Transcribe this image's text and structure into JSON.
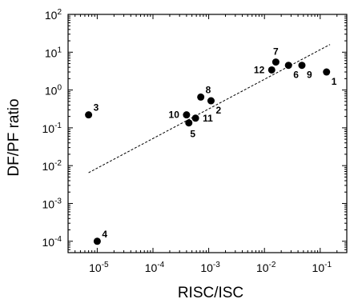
{
  "chart_data": {
    "type": "scatter",
    "xlabel": "RISC/ISC",
    "ylabel": "DF/PF ratio",
    "xscale": "log",
    "yscale": "log",
    "xlim": [
      3e-06,
      0.3
    ],
    "ylim": [
      5e-05,
      100
    ],
    "xticks": [
      {
        "base": "10",
        "exp": "-5",
        "value": 1e-05
      },
      {
        "base": "10",
        "exp": "-4",
        "value": 0.0001
      },
      {
        "base": "10",
        "exp": "-3",
        "value": 0.001
      },
      {
        "base": "10",
        "exp": "-2",
        "value": 0.01
      },
      {
        "base": "10",
        "exp": "-1",
        "value": 0.1
      }
    ],
    "yticks": [
      {
        "base": "10",
        "exp": "-4",
        "value": 0.0001
      },
      {
        "base": "10",
        "exp": "-3",
        "value": 0.001
      },
      {
        "base": "10",
        "exp": "-2",
        "value": 0.01
      },
      {
        "base": "10",
        "exp": "-1",
        "value": 0.1
      },
      {
        "base": "10",
        "exp": "0",
        "value": 1
      },
      {
        "base": "10",
        "exp": "1",
        "value": 10
      },
      {
        "base": "10",
        "exp": "2",
        "value": 100
      }
    ],
    "points": [
      {
        "label": "1",
        "x": 0.13,
        "y": 3.0,
        "label_pos": "below-right"
      },
      {
        "label": "2",
        "x": 0.0011,
        "y": 0.52,
        "label_pos": "below-right"
      },
      {
        "label": "3",
        "x": 7e-06,
        "y": 0.22,
        "label_pos": "above-right"
      },
      {
        "label": "4",
        "x": 1e-05,
        "y": 0.0001,
        "label_pos": "above-right"
      },
      {
        "label": "5",
        "x": 0.00044,
        "y": 0.135,
        "label_pos": "below"
      },
      {
        "label": "6",
        "x": 0.027,
        "y": 4.5,
        "label_pos": "below-right"
      },
      {
        "label": "7",
        "x": 0.016,
        "y": 5.5,
        "label_pos": "above"
      },
      {
        "label": "8",
        "x": 0.00072,
        "y": 0.65,
        "label_pos": "above-right"
      },
      {
        "label": "9",
        "x": 0.047,
        "y": 4.5,
        "label_pos": "below-right"
      },
      {
        "label": "10",
        "x": 0.0004,
        "y": 0.22,
        "label_pos": "left"
      },
      {
        "label": "11",
        "x": 0.00058,
        "y": 0.18,
        "label_pos": "right"
      },
      {
        "label": "12",
        "x": 0.0135,
        "y": 3.4,
        "label_pos": "left"
      }
    ],
    "fit_line": {
      "style": "dashed",
      "x": [
        7e-06,
        0.15
      ],
      "y": [
        0.0065,
        16
      ]
    },
    "grid": false,
    "legend": "none"
  }
}
